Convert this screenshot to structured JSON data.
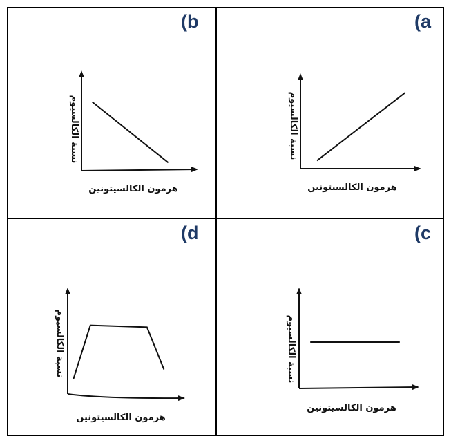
{
  "chart_data": [
    {
      "panel": "(a",
      "type": "line",
      "xlabel": "هرمون الكالسيتونين",
      "ylabel": "نسبة الكالسيوم",
      "trend": "increasing",
      "series": [
        {
          "x": [
            0.15,
            0.95
          ],
          "y": [
            0.1,
            0.95
          ]
        }
      ],
      "xlim": [
        0,
        1
      ],
      "ylim": [
        0,
        1
      ]
    },
    {
      "panel": "(b",
      "type": "line",
      "xlabel": "هرمون الكالسيتونين",
      "ylabel": "نسبة الكالسيوم",
      "trend": "decreasing",
      "series": [
        {
          "x": [
            0.1,
            0.8
          ],
          "y": [
            0.85,
            0.1
          ]
        }
      ],
      "xlim": [
        0,
        1
      ],
      "ylim": [
        0,
        1
      ]
    },
    {
      "panel": "(c",
      "type": "line",
      "xlabel": "هرمون الكالسيتونين",
      "ylabel": "نسبة الكالسيوم",
      "trend": "constant",
      "series": [
        {
          "x": [
            0.1,
            0.9
          ],
          "y": [
            0.5,
            0.5
          ]
        }
      ],
      "xlim": [
        0,
        1
      ],
      "ylim": [
        0,
        1
      ]
    },
    {
      "panel": "(d",
      "type": "line",
      "xlabel": "هرمون الكالسيتونين",
      "ylabel": "نسبة الكالسيوم",
      "trend": "rise-plateau-fall",
      "series": [
        {
          "x": [
            0.05,
            0.2,
            0.7,
            0.85
          ],
          "y": [
            0.15,
            0.7,
            0.68,
            0.25
          ]
        }
      ],
      "xlim": [
        0,
        1
      ],
      "ylim": [
        0,
        1
      ]
    }
  ]
}
